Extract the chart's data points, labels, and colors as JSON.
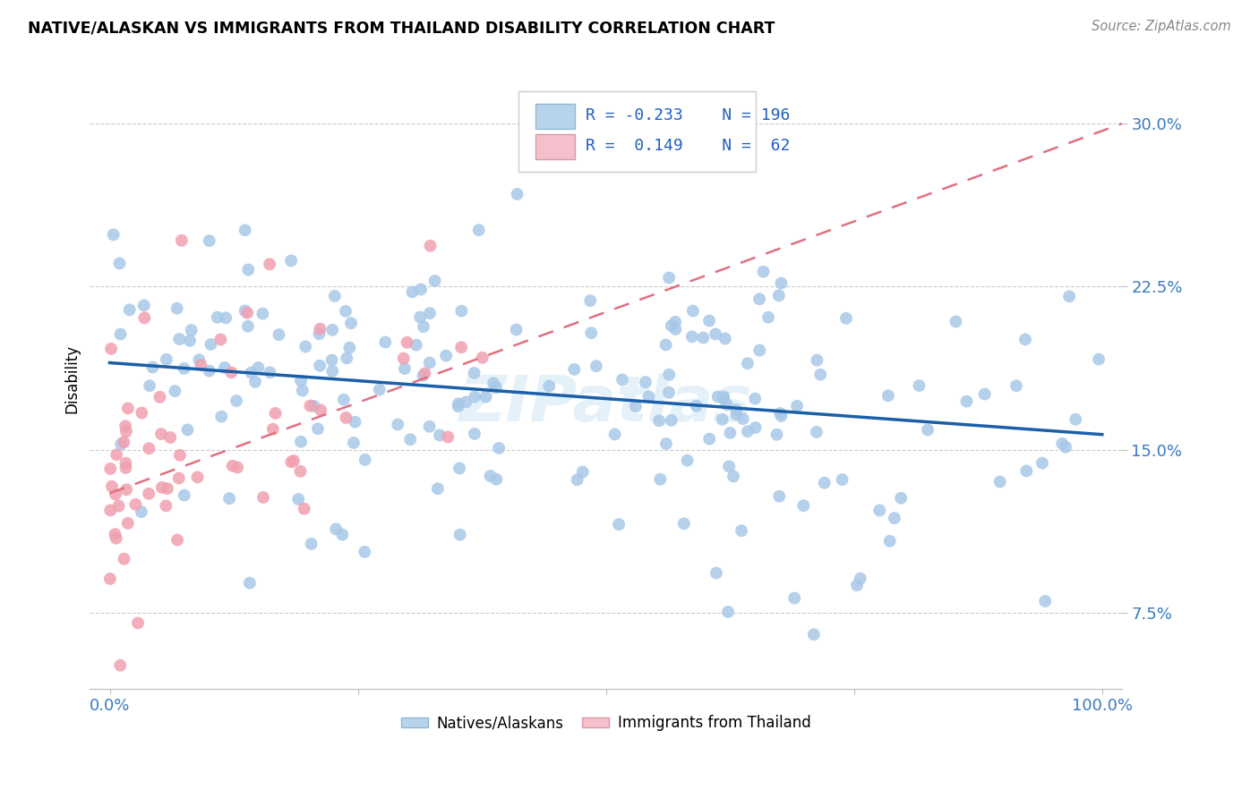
{
  "title": "NATIVE/ALASKAN VS IMMIGRANTS FROM THAILAND DISABILITY CORRELATION CHART",
  "source": "Source: ZipAtlas.com",
  "ylabel": "Disability",
  "xlim": [
    -0.02,
    1.02
  ],
  "ylim": [
    0.04,
    0.325
  ],
  "yticks": [
    0.075,
    0.15,
    0.225,
    0.3
  ],
  "ytick_labels": [
    "7.5%",
    "15.0%",
    "22.5%",
    "30.0%"
  ],
  "xtick_labels": [
    "0.0%",
    "",
    "",
    "",
    "100.0%"
  ],
  "blue_color": "#a8c8e8",
  "pink_color": "#f0a0b0",
  "blue_line_color": "#1a5fa8",
  "pink_line_color": "#e07080",
  "legend_blue_color": "#b8d4ec",
  "legend_pink_color": "#f4c0cc",
  "R_blue": -0.233,
  "N_blue": 196,
  "R_pink": 0.149,
  "N_pink": 62,
  "blue_trend_x": [
    0.0,
    1.0
  ],
  "blue_trend_y": [
    0.19,
    0.157
  ],
  "pink_trend_x": [
    0.0,
    1.02
  ],
  "pink_trend_y": [
    0.13,
    0.3
  ],
  "watermark": "ZIPatlas",
  "watermark_color": "#d5e8f5"
}
